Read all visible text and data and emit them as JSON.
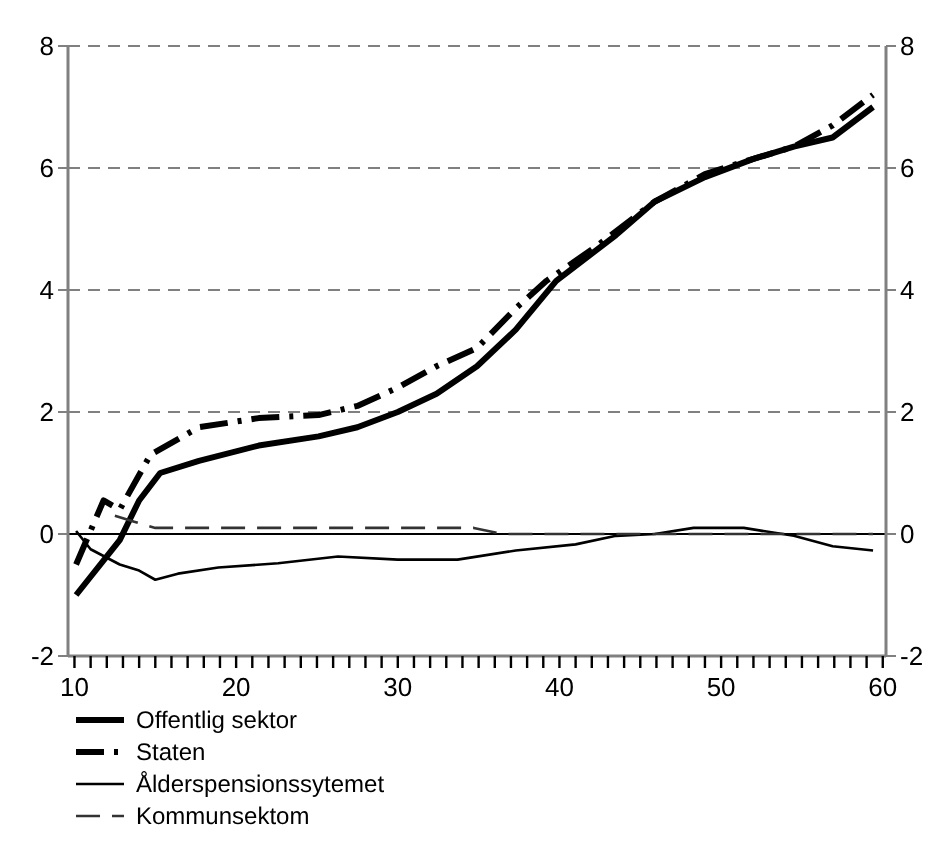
{
  "chart_data": {
    "type": "line",
    "xlim": [
      9.6,
      60.2
    ],
    "xticks": [
      10,
      {
        "value": 11,
        "label": null
      },
      {
        "value": 12,
        "label": null
      },
      {
        "value": 13,
        "label": null
      },
      {
        "value": 14,
        "label": null
      },
      {
        "value": 15,
        "label": null
      },
      {
        "value": 16,
        "label": null
      },
      {
        "value": 17,
        "label": null
      },
      {
        "value": 18,
        "label": null
      },
      {
        "value": 19,
        "label": null
      },
      20,
      {
        "value": 21,
        "label": null
      },
      {
        "value": 22,
        "label": null
      },
      {
        "value": 23,
        "label": null
      },
      {
        "value": 24,
        "label": null
      },
      {
        "value": 25,
        "label": null
      },
      {
        "value": 26,
        "label": null
      },
      {
        "value": 27,
        "label": null
      },
      {
        "value": 28,
        "label": null
      },
      {
        "value": 29,
        "label": null
      },
      30,
      {
        "value": 31,
        "label": null
      },
      {
        "value": 32,
        "label": null
      },
      {
        "value": 33,
        "label": null
      },
      {
        "value": 34,
        "label": null
      },
      {
        "value": 35,
        "label": null
      },
      {
        "value": 36,
        "label": null
      },
      {
        "value": 37,
        "label": null
      },
      {
        "value": 38,
        "label": null
      },
      {
        "value": 39,
        "label": null
      },
      40,
      {
        "value": 41,
        "label": null
      },
      {
        "value": 42,
        "label": null
      },
      {
        "value": 43,
        "label": null
      },
      {
        "value": 44,
        "label": null
      },
      {
        "value": 45,
        "label": null
      },
      {
        "value": 46,
        "label": null
      },
      {
        "value": 47,
        "label": null
      },
      {
        "value": 48,
        "label": null
      },
      {
        "value": 49,
        "label": null
      },
      50,
      {
        "value": 51,
        "label": null
      },
      {
        "value": 52,
        "label": null
      },
      {
        "value": 53,
        "label": null
      },
      {
        "value": 54,
        "label": null
      },
      {
        "value": 55,
        "label": null
      },
      {
        "value": 56,
        "label": null
      },
      {
        "value": 57,
        "label": null
      },
      {
        "value": 58,
        "label": null
      },
      {
        "value": 59,
        "label": null
      },
      60
    ],
    "ylim": [
      -2,
      8
    ],
    "yticks": [
      -2,
      0,
      2,
      4,
      6,
      8
    ],
    "y2lim": [
      -2,
      8
    ],
    "y2ticks": [
      -2,
      0,
      2,
      4,
      6,
      8
    ],
    "grid": "y",
    "legend": "bottom",
    "ref_lines": [
      {
        "axis": "y",
        "value": 0,
        "color": "#000000",
        "line_style": "solid"
      }
    ],
    "series": [
      {
        "name": "Offentlig sektor",
        "color": "#000000",
        "line_style": "solid",
        "x": [
          10.1,
          12.8,
          14,
          15.3,
          17.7,
          21.4,
          25.1,
          27.5,
          30,
          32.4,
          34.9,
          37.3,
          39.8,
          43.5,
          45.9,
          49,
          52,
          54.5,
          56.9,
          59.4
        ],
        "values": [
          -1,
          -0.1,
          0.55,
          1,
          1.2,
          1.45,
          1.6,
          1.75,
          2,
          2.3,
          2.75,
          3.35,
          4.15,
          4.9,
          5.45,
          5.85,
          6.15,
          6.35,
          6.5,
          7
        ]
      },
      {
        "name": "Staten",
        "color": "#000000",
        "line_style": "dashed",
        "x": [
          10.1,
          11.8,
          12.8,
          14.7,
          17.7,
          21.4,
          25.1,
          27.5,
          30,
          32.4,
          34.9,
          37.3,
          39.2,
          42.2,
          45.9,
          49,
          52,
          54.5,
          56.9,
          59.4
        ],
        "values": [
          -0.5,
          0.55,
          0.4,
          1.3,
          1.75,
          1.9,
          1.95,
          2.1,
          2.4,
          2.75,
          3.05,
          3.7,
          4.15,
          4.7,
          5.45,
          5.9,
          6.15,
          6.35,
          6.7,
          7.2
        ]
      },
      {
        "name": "Ålderspensionssytemet",
        "color": "#000000",
        "line_style": "solid",
        "x": [
          10.1,
          11,
          12.8,
          14,
          15,
          16.4,
          18.9,
          22.6,
          26.3,
          30,
          33.7,
          37.3,
          41,
          43.5,
          45.9,
          48.3,
          51.4,
          54.5,
          56.9,
          59.4
        ],
        "values": [
          0.05,
          -0.25,
          -0.5,
          -0.6,
          -0.75,
          -0.65,
          -0.55,
          -0.48,
          -0.37,
          -0.42,
          -0.42,
          -0.27,
          -0.17,
          -0.03,
          0,
          0.1,
          0.1,
          -0.03,
          -0.2,
          -0.27
        ]
      },
      {
        "name": "Kommunsektom",
        "color": "#333333",
        "line_style": "dashed",
        "x": [
          12.5,
          13.7,
          15,
          20,
          25,
          30,
          34.7,
          36.5,
          40,
          45,
          50,
          55,
          59.4
        ],
        "values": [
          0.3,
          0.2,
          0.1,
          0.1,
          0.1,
          0.1,
          0.1,
          0,
          0,
          0,
          0,
          0,
          0
        ]
      }
    ]
  }
}
